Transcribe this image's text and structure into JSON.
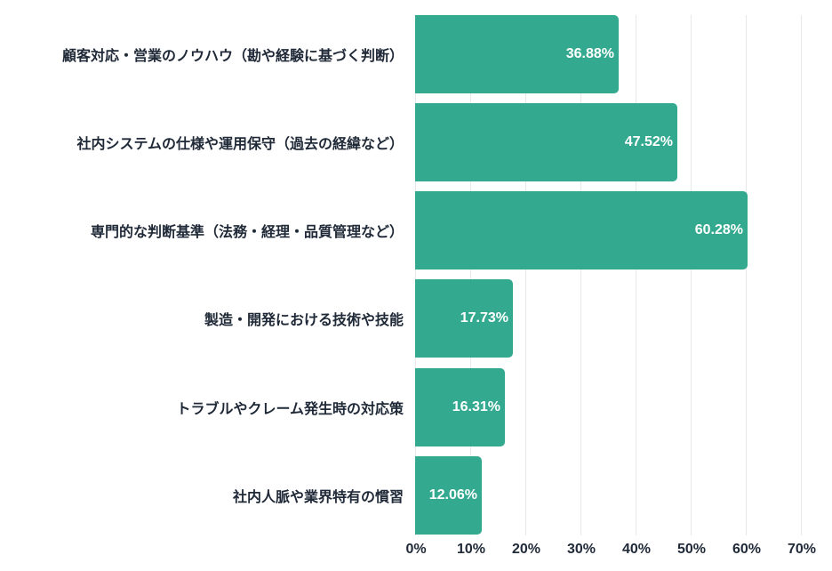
{
  "chart_data": {
    "type": "bar",
    "orientation": "horizontal",
    "title": "",
    "xlabel": "",
    "ylabel": "",
    "xlim": [
      0,
      70
    ],
    "grid": true,
    "legend": null,
    "bar_color": "#33a98f",
    "categories": [
      "顧客対応・営業のノウハウ（勘や経験に基づく判断）",
      "社内システムの仕様や運用保守（過去の経緯など）",
      "専門的な判断基準（法務・経理・品質管理など）",
      "製造・開発における技術や技能",
      "トラブルやクレーム発生時の対応策",
      "社内人脈や業界特有の慣習"
    ],
    "values": [
      36.88,
      47.52,
      60.28,
      17.73,
      16.31,
      12.06
    ],
    "value_labels": [
      "36.88%",
      "47.52%",
      "60.28%",
      "17.73%",
      "16.31%",
      "12.06%"
    ],
    "x_ticks": [
      "0%",
      "10%",
      "20%",
      "30%",
      "40%",
      "50%",
      "60%",
      "70%"
    ]
  }
}
